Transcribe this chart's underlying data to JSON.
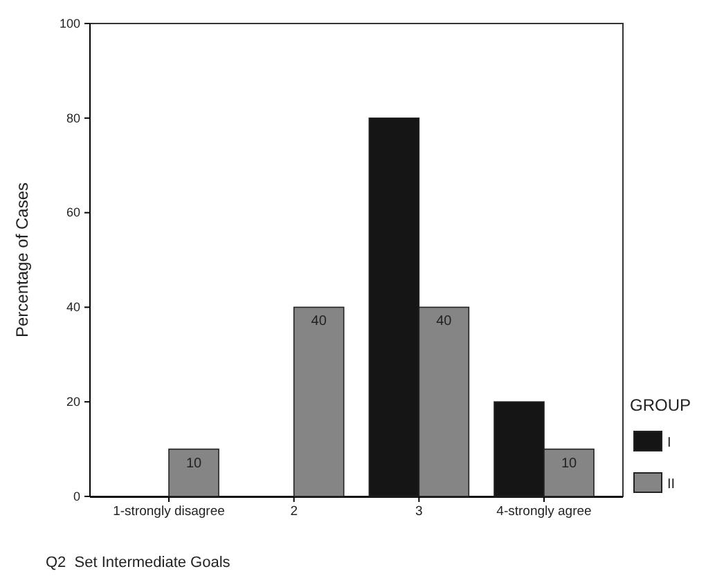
{
  "chart_data": {
    "type": "bar",
    "xlabel": "Q2  Set Intermediate Goals",
    "ylabel": "Percentage of Cases",
    "legend_title": "GROUP",
    "legend": "right",
    "categories": [
      "1-strongly disagree",
      "2",
      "3",
      "4-strongly agree"
    ],
    "series": [
      {
        "name": "I",
        "color": "#151515",
        "values": [
          0,
          0,
          80,
          20
        ]
      },
      {
        "name": "II",
        "color": "#858585",
        "values": [
          10,
          40,
          40,
          10
        ],
        "value_labels": [
          "10",
          "40",
          "40",
          "10"
        ]
      }
    ],
    "ylim": [
      0,
      100
    ],
    "yticks": [
      0,
      20,
      40,
      60,
      80,
      100
    ],
    "grid": false
  }
}
